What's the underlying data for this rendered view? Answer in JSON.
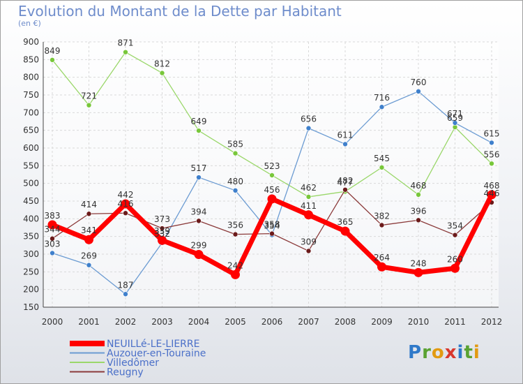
{
  "title": "Evolution du Montant de la Dette par Habitant",
  "subtitle": "(en €)",
  "logo": {
    "letters": [
      {
        "ch": "P",
        "color": "#2f79c9"
      },
      {
        "ch": "r",
        "color": "#5aa232"
      },
      {
        "ch": "o",
        "color": "#e29a12"
      },
      {
        "ch": "x",
        "color": "#d8372d"
      },
      {
        "ch": "i",
        "color": "#2f79c9"
      },
      {
        "ch": "t",
        "color": "#5aa232"
      },
      {
        "ch": "i",
        "color": "#e29a12"
      }
    ]
  },
  "chart_data": {
    "type": "line",
    "x": [
      "2000",
      "2001",
      "2002",
      "2003",
      "2004",
      "2005",
      "2006",
      "2007",
      "2008",
      "2009",
      "2010",
      "2011",
      "2012"
    ],
    "ylim": [
      150,
      900
    ],
    "yticks": [
      150,
      200,
      250,
      300,
      350,
      400,
      450,
      500,
      550,
      600,
      650,
      700,
      750,
      800,
      850,
      900
    ],
    "grid": true,
    "legend_position": "bottom-left",
    "series": [
      {
        "name": "NEUILLé-LE-LIERRE",
        "color": "#ff0000",
        "marker": "#ff0000",
        "width": 7,
        "values": [
          383,
          341,
          442,
          339,
          299,
          242,
          456,
          411,
          365,
          264,
          248,
          260,
          468
        ]
      },
      {
        "name": "Auzouer-en-Touraine",
        "color": "#6b9bd2",
        "marker": "#3f80cc",
        "width": 1.3,
        "values": [
          303,
          269,
          187,
          332,
          517,
          480,
          354,
          656,
          611,
          716,
          760,
          671,
          615
        ]
      },
      {
        "name": "Villedômer",
        "color": "#9ad76a",
        "marker": "#78c73a",
        "width": 1.3,
        "values": [
          849,
          721,
          871,
          812,
          649,
          585,
          523,
          462,
          477,
          545,
          468,
          659,
          556
        ]
      },
      {
        "name": "Reugny",
        "color": "#8b3a3a",
        "marker": "#6b1a1a",
        "width": 1.3,
        "values": [
          344,
          414,
          416,
          373,
          394,
          356,
          358,
          309,
          482,
          382,
          396,
          354,
          446
        ]
      }
    ]
  }
}
